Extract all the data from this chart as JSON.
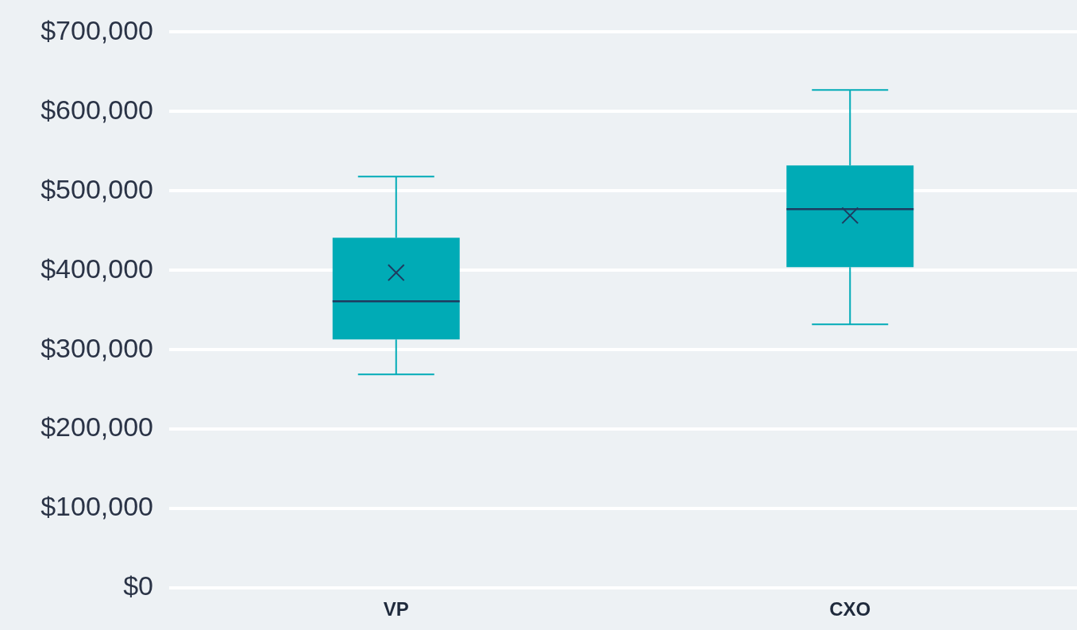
{
  "chart_data": {
    "type": "box",
    "categories": [
      "VP",
      "CXO"
    ],
    "boxes": [
      {
        "low": 269000,
        "q1": 313000,
        "median": 361000,
        "q3": 441000,
        "high": 518000,
        "mean": 397000
      },
      {
        "low": 332000,
        "q1": 404000,
        "median": 477000,
        "q3": 532000,
        "high": 627000,
        "mean": 469000
      }
    ],
    "color": "#00abb6",
    "marker": "cross",
    "grid": "y",
    "ylim": [
      0,
      700000
    ],
    "yticks": [
      {
        "value": 0,
        "label": "$0"
      },
      {
        "value": 100000,
        "label": "$100,000"
      },
      {
        "value": 200000,
        "label": "$200,000"
      },
      {
        "value": 300000,
        "label": "$300,000"
      },
      {
        "value": 400000,
        "label": "$400,000"
      },
      {
        "value": 500000,
        "label": "$500,000"
      },
      {
        "value": 600000,
        "label": "$600,000"
      },
      {
        "value": 700000,
        "label": "$700,000"
      }
    ]
  }
}
